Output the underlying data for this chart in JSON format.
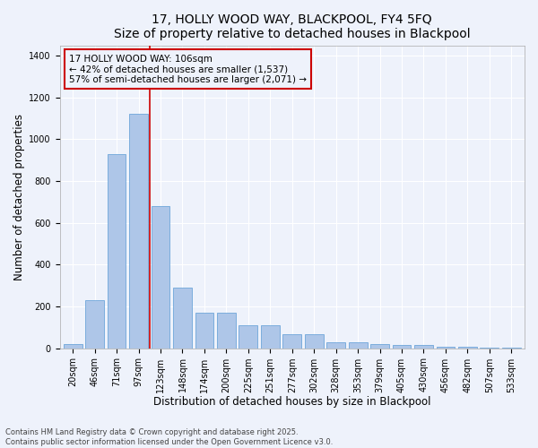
{
  "title": "17, HOLLY WOOD WAY, BLACKPOOL, FY4 5FQ",
  "subtitle": "Size of property relative to detached houses in Blackpool",
  "xlabel": "Distribution of detached houses by size in Blackpool",
  "ylabel": "Number of detached properties",
  "categories": [
    "20sqm",
    "46sqm",
    "71sqm",
    "97sqm",
    "123sqm",
    "148sqm",
    "174sqm",
    "200sqm",
    "225sqm",
    "251sqm",
    "277sqm",
    "302sqm",
    "328sqm",
    "353sqm",
    "379sqm",
    "405sqm",
    "430sqm",
    "456sqm",
    "482sqm",
    "507sqm",
    "533sqm"
  ],
  "values": [
    20,
    230,
    930,
    1120,
    680,
    290,
    170,
    170,
    110,
    110,
    65,
    65,
    30,
    30,
    20,
    15,
    15,
    7,
    7,
    2,
    2
  ],
  "bar_color": "#aec6e8",
  "bar_edge_color": "#5b9bd5",
  "background_color": "#eef2fb",
  "grid_color": "#ffffff",
  "property_label": "17 HOLLY WOOD WAY: 106sqm",
  "annotation_line1": "← 42% of detached houses are smaller (1,537)",
  "annotation_line2": "57% of semi-detached houses are larger (2,071) →",
  "vline_color": "#cc0000",
  "vline_x": 3.5,
  "annotation_box_color": "#cc0000",
  "footer1": "Contains HM Land Registry data © Crown copyright and database right 2025.",
  "footer2": "Contains public sector information licensed under the Open Government Licence v3.0.",
  "ylim": [
    0,
    1450
  ],
  "yticks": [
    0,
    200,
    400,
    600,
    800,
    1000,
    1200,
    1400
  ],
  "title_fontsize": 10,
  "subtitle_fontsize": 9,
  "axis_label_fontsize": 8.5,
  "tick_fontsize": 7,
  "annotation_fontsize": 7.5,
  "footer_fontsize": 6
}
